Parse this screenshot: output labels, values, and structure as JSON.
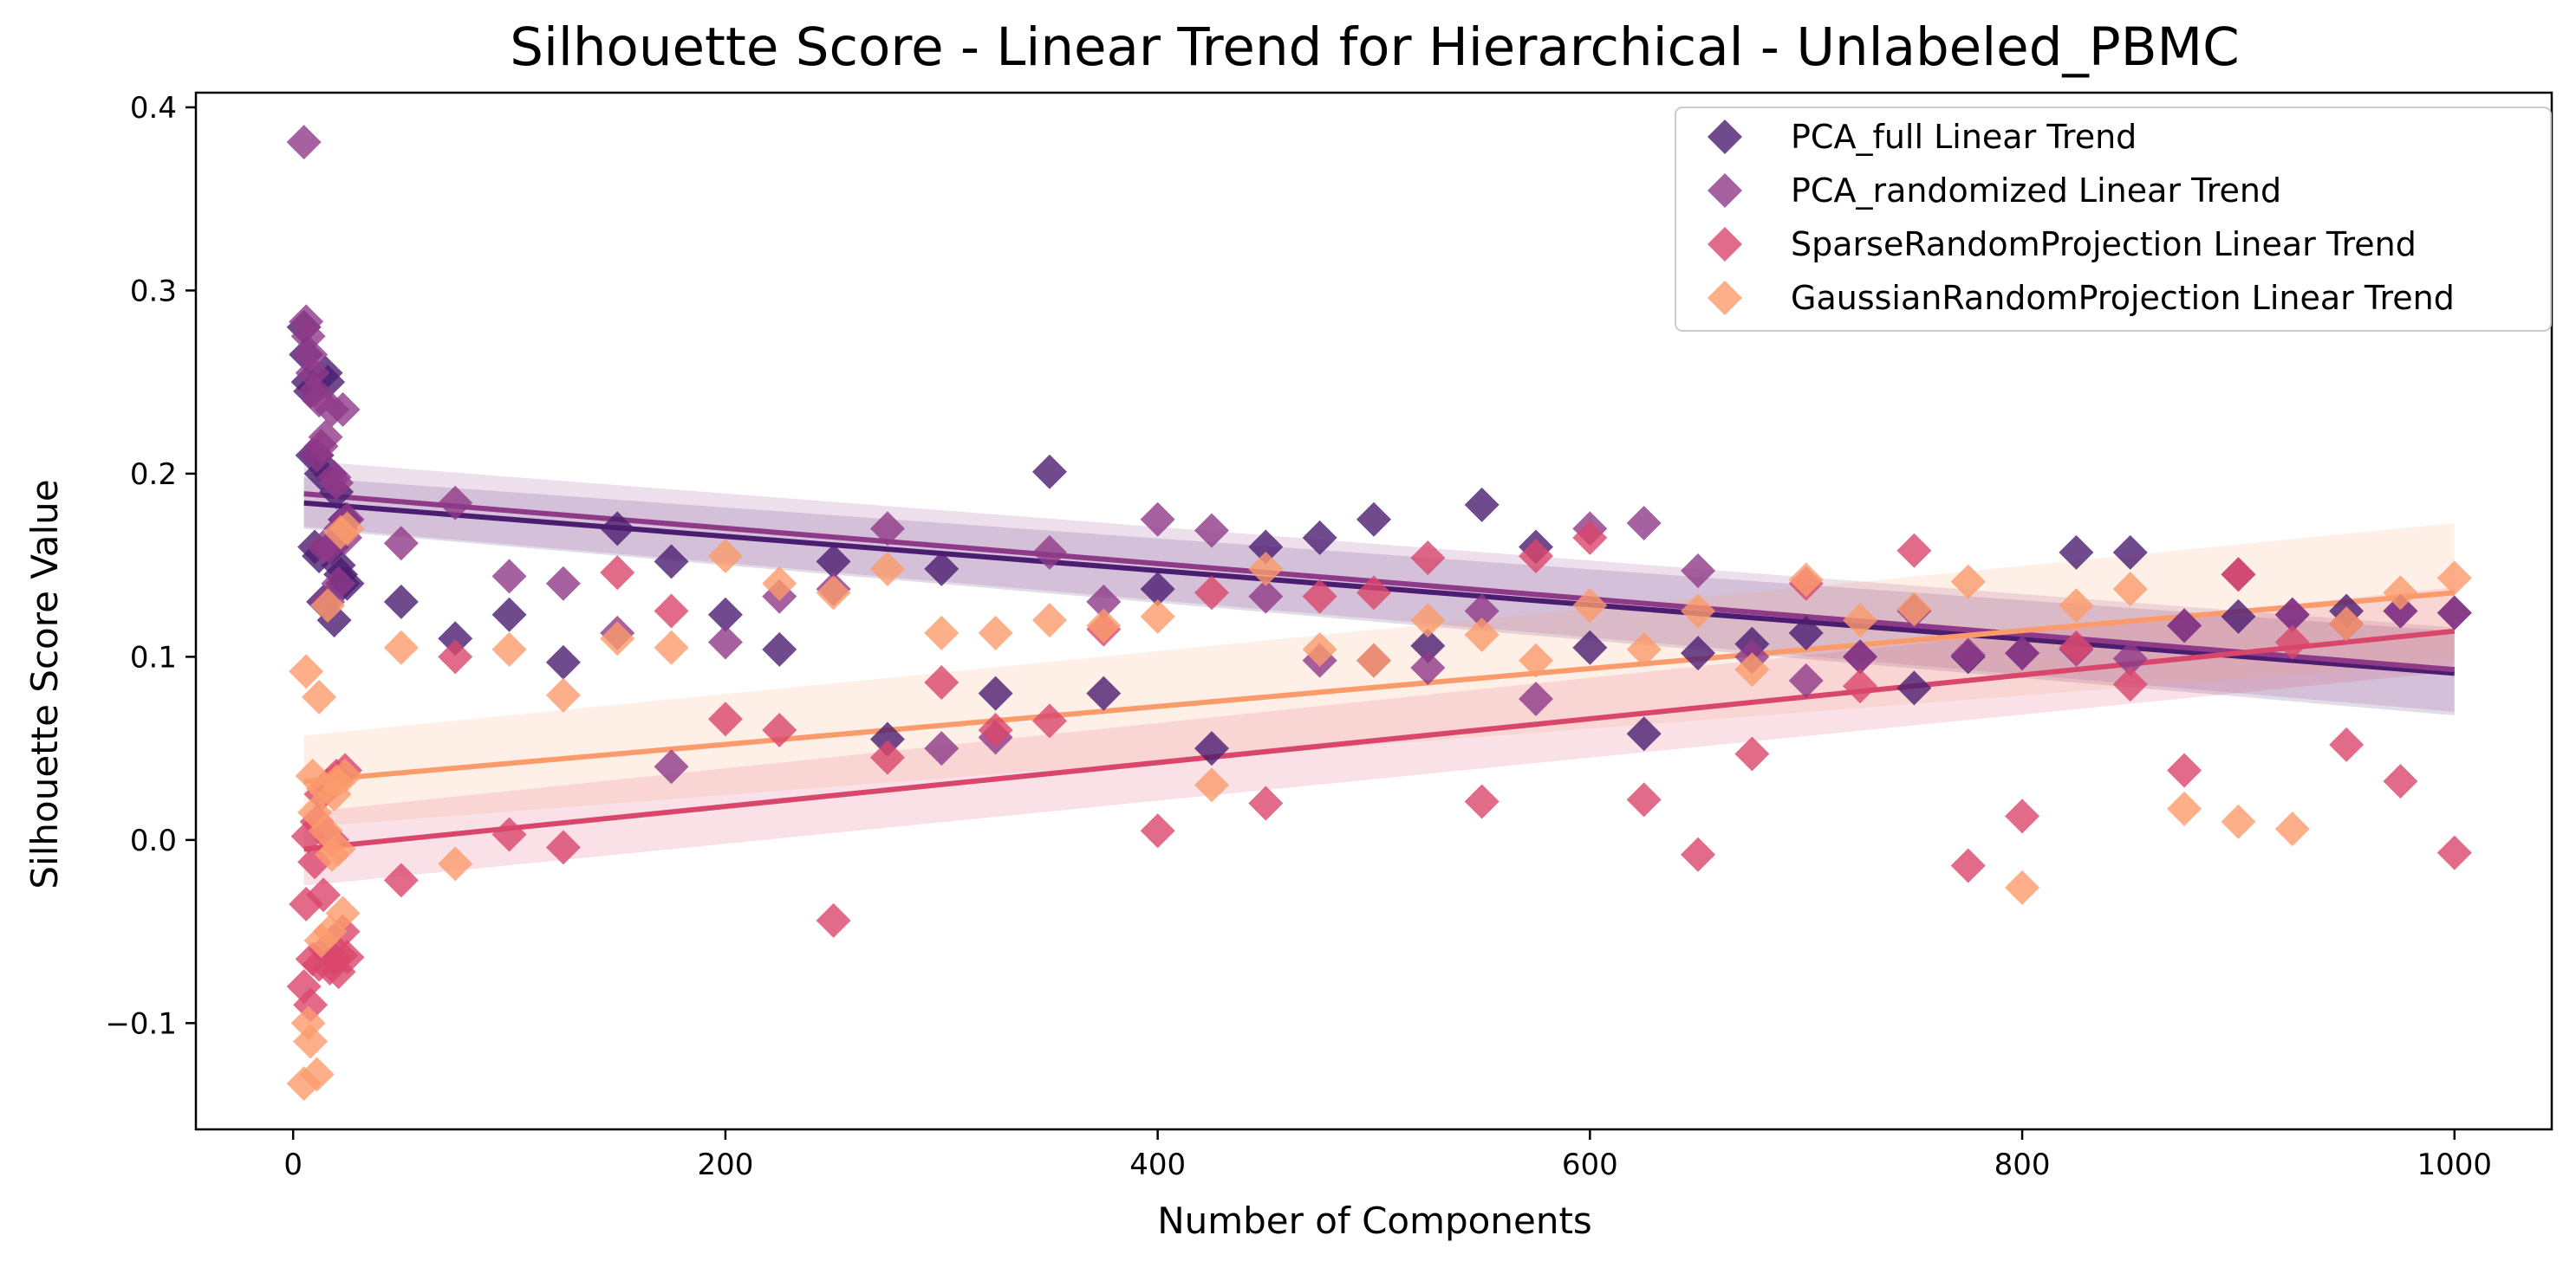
{
  "chart_data": {
    "type": "scatter",
    "title": "Silhouette Score - Linear Trend for Hierarchical - Unlabeled_PBMC",
    "xlabel": "Number of Components",
    "ylabel": "Silhouette Score Value",
    "xlim": [
      -45,
      1045
    ],
    "ylim": [
      -0.158,
      0.408
    ],
    "x_ticks": [
      0,
      200,
      400,
      600,
      800,
      1000
    ],
    "x_tick_labels": [
      "0",
      "200",
      "400",
      "600",
      "800",
      "1000"
    ],
    "y_ticks": [
      -0.1,
      0.0,
      0.1,
      0.2,
      0.3,
      0.4
    ],
    "y_tick_labels": [
      "−0.1",
      "0.0",
      "0.1",
      "0.2",
      "0.3",
      "0.4"
    ],
    "grid": false,
    "legend_position": "top-right",
    "marker": "diamond",
    "series": [
      {
        "name": "PCA_full Linear Trend",
        "color": "#4b1d70",
        "x": [
          5,
          6,
          7,
          8,
          9,
          10,
          11,
          12,
          13,
          14,
          15,
          16,
          17,
          18,
          19,
          20,
          21,
          22,
          23,
          24,
          25,
          50,
          75,
          100,
          125,
          150,
          175,
          200,
          225,
          250,
          275,
          300,
          325,
          350,
          375,
          400,
          425,
          450,
          475,
          500,
          525,
          550,
          575,
          600,
          625,
          650,
          675,
          700,
          725,
          750,
          775,
          800,
          825,
          850,
          875,
          900,
          925,
          950,
          975,
          1000
        ],
        "y": [
          0.28,
          0.265,
          0.25,
          0.245,
          0.21,
          0.16,
          0.21,
          0.155,
          0.2,
          0.13,
          0.255,
          0.25,
          0.2,
          0.16,
          0.12,
          0.19,
          0.15,
          0.145,
          0.14,
          0.175,
          0.14,
          0.13,
          0.11,
          0.123,
          0.097,
          0.17,
          0.152,
          0.123,
          0.104,
          0.152,
          0.055,
          0.148,
          0.08,
          0.201,
          0.08,
          0.137,
          0.05,
          0.16,
          0.165,
          0.175,
          0.106,
          0.183,
          0.16,
          0.105,
          0.058,
          0.102,
          0.107,
          0.113,
          0.1,
          0.083,
          0.1,
          0.102,
          0.157,
          0.157,
          0.117,
          0.122,
          0.123,
          0.125,
          0.125,
          0.124
        ],
        "trend": {
          "x": [
            5,
            1000
          ],
          "y": [
            0.184,
            0.091
          ],
          "ci_start": [
            0.17,
            0.198
          ],
          "ci_end": [
            0.068,
            0.114
          ]
        }
      },
      {
        "name": "PCA_randomized Linear Trend",
        "color": "#8e3a88",
        "x": [
          5,
          6,
          7,
          8,
          9,
          10,
          11,
          12,
          13,
          14,
          15,
          16,
          17,
          18,
          19,
          20,
          21,
          22,
          23,
          24,
          25,
          50,
          75,
          100,
          125,
          150,
          175,
          200,
          225,
          250,
          275,
          300,
          325,
          350,
          375,
          400,
          425,
          450,
          475,
          500,
          525,
          550,
          575,
          600,
          625,
          650,
          675,
          700,
          725,
          750,
          775,
          800,
          825,
          850,
          875,
          900,
          925,
          950,
          975,
          1000
        ],
        "y": [
          0.381,
          0.283,
          0.275,
          0.265,
          0.255,
          0.245,
          0.21,
          0.24,
          0.215,
          0.16,
          0.22,
          0.13,
          0.16,
          0.235,
          0.198,
          0.195,
          0.14,
          0.17,
          0.235,
          0.165,
          0.175,
          0.162,
          0.184,
          0.144,
          0.14,
          0.113,
          0.04,
          0.108,
          0.133,
          0.137,
          0.17,
          0.05,
          0.056,
          0.157,
          0.13,
          0.175,
          0.169,
          0.133,
          0.098,
          0.098,
          0.094,
          0.125,
          0.077,
          0.17,
          0.173,
          0.147,
          0.1,
          0.087,
          0.1,
          0.125,
          0.101,
          0.102,
          0.104,
          0.099,
          0.117,
          0.145,
          0.123,
          0.118,
          0.125,
          0.124
        ],
        "trend": {
          "x": [
            5,
            1000
          ],
          "y": [
            0.189,
            0.093
          ],
          "ci_start": [
            0.171,
            0.207
          ],
          "ci_end": [
            0.07,
            0.116
          ]
        }
      },
      {
        "name": "SparseRandomProjection Linear Trend",
        "color": "#d9466b",
        "x": [
          5,
          6,
          7,
          8,
          9,
          10,
          11,
          12,
          13,
          14,
          15,
          16,
          17,
          18,
          19,
          20,
          21,
          22,
          23,
          24,
          25,
          50,
          75,
          100,
          125,
          150,
          175,
          200,
          225,
          250,
          275,
          300,
          325,
          350,
          375,
          400,
          425,
          450,
          475,
          500,
          525,
          550,
          575,
          600,
          625,
          650,
          675,
          700,
          725,
          750,
          775,
          800,
          825,
          850,
          875,
          900,
          925,
          950,
          975,
          1000
        ],
        "y": [
          -0.08,
          -0.035,
          0.002,
          -0.09,
          -0.065,
          -0.012,
          0.01,
          -0.068,
          0.025,
          -0.03,
          -0.06,
          0.03,
          -0.07,
          0.0,
          -0.065,
          0.035,
          -0.072,
          -0.063,
          -0.05,
          0.038,
          -0.064,
          -0.022,
          0.1,
          0.003,
          -0.004,
          0.146,
          0.125,
          0.066,
          0.06,
          -0.044,
          0.045,
          0.086,
          0.06,
          0.065,
          0.115,
          0.005,
          0.135,
          0.02,
          0.133,
          0.135,
          0.154,
          0.021,
          0.155,
          0.165,
          0.022,
          -0.008,
          0.047,
          0.14,
          0.084,
          0.158,
          -0.014,
          0.013,
          0.105,
          0.085,
          0.038,
          0.145,
          0.108,
          0.052,
          0.032,
          -0.007
        ],
        "trend": {
          "x": [
            5,
            1000
          ],
          "y": [
            -0.005,
            0.114
          ],
          "ci_start": [
            -0.025,
            0.015
          ],
          "ci_end": [
            0.092,
            0.138
          ]
        }
      },
      {
        "name": "GaussianRandomProjection Linear Trend",
        "color": "#fb9b6b",
        "x": [
          5,
          6,
          7,
          8,
          9,
          10,
          11,
          12,
          13,
          14,
          15,
          16,
          17,
          18,
          19,
          20,
          21,
          22,
          23,
          24,
          25,
          50,
          75,
          100,
          125,
          150,
          175,
          200,
          225,
          250,
          275,
          300,
          325,
          350,
          375,
          400,
          425,
          450,
          475,
          500,
          525,
          550,
          575,
          600,
          625,
          650,
          675,
          700,
          725,
          750,
          775,
          800,
          825,
          850,
          875,
          900,
          925,
          950,
          975,
          1000
        ],
        "y": [
          -0.133,
          0.092,
          -0.1,
          -0.11,
          0.035,
          0.015,
          -0.128,
          0.078,
          -0.055,
          0.028,
          0.005,
          0.128,
          -0.05,
          -0.008,
          0.025,
          0.032,
          -0.005,
          0.168,
          -0.04,
          0.035,
          0.17,
          0.105,
          -0.013,
          0.104,
          0.079,
          0.11,
          0.105,
          0.155,
          0.14,
          0.135,
          0.148,
          0.113,
          0.113,
          0.12,
          0.117,
          0.122,
          0.03,
          0.148,
          0.104,
          0.098,
          0.12,
          0.112,
          0.098,
          0.128,
          0.104,
          0.125,
          0.093,
          0.142,
          0.12,
          0.126,
          0.141,
          -0.026,
          0.128,
          0.137,
          0.017,
          0.01,
          0.006,
          0.118,
          0.135,
          0.143
        ],
        "trend": {
          "x": [
            5,
            1000
          ],
          "y": [
            0.032,
            0.135
          ],
          "ci_start": [
            0.007,
            0.057
          ],
          "ci_end": [
            0.097,
            0.173
          ]
        }
      }
    ]
  }
}
